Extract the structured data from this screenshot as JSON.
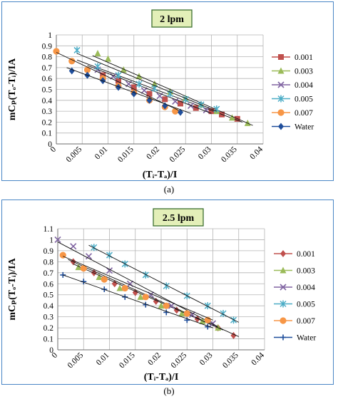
{
  "chart_data": [
    {
      "type": "scatter",
      "title": "2 lpm",
      "xlabel": "(Tᵢ-Tₐ)/I",
      "ylabel": "mCₚ(Tₒ-Tᵢ)/IA",
      "xlim": [
        0,
        0.04
      ],
      "ylim": [
        0,
        1
      ],
      "x_ticks": [
        "0",
        "0.005",
        "0.01",
        "0.015",
        "0.02",
        "0.025",
        "0.03",
        "0.035",
        "0.04"
      ],
      "y_ticks": [
        "0",
        "0.1",
        "0.2",
        "0.3",
        "0.4",
        "0.5",
        "0.6",
        "0.7",
        "0.8",
        "0.9",
        "1"
      ],
      "grid": true,
      "legend_position": "right",
      "series": [
        {
          "name": "0.001",
          "color": "#c0504d",
          "marker": "square",
          "x": [
            0.009,
            0.012,
            0.015,
            0.018,
            0.021,
            0.024,
            0.027,
            0.03,
            0.032,
            0.035
          ],
          "y": [
            0.63,
            0.58,
            0.52,
            0.46,
            0.41,
            0.37,
            0.33,
            0.3,
            0.27,
            0.23
          ],
          "fit": [
            [
              0.004,
              0.77
            ],
            [
              0.036,
              0.2
            ]
          ]
        },
        {
          "name": "0.003",
          "color": "#9bbb59",
          "marker": "triangle",
          "x": [
            0.008,
            0.01,
            0.013,
            0.016,
            0.019,
            0.022,
            0.025,
            0.028,
            0.031,
            0.034,
            0.037
          ],
          "y": [
            0.83,
            0.78,
            0.68,
            0.62,
            0.55,
            0.48,
            0.42,
            0.36,
            0.3,
            0.24,
            0.19
          ],
          "fit": [
            [
              0.007,
              0.81
            ],
            [
              0.038,
              0.17
            ]
          ]
        },
        {
          "name": "0.004",
          "color": "#8064a2",
          "marker": "x",
          "x": [
            0.008,
            0.011,
            0.014,
            0.017,
            0.02,
            0.023,
            0.026,
            0.029
          ],
          "y": [
            0.68,
            0.62,
            0.55,
            0.49,
            0.44,
            0.39,
            0.35,
            0.31
          ],
          "fit": [
            [
              0.006,
              0.72
            ],
            [
              0.03,
              0.28
            ]
          ]
        },
        {
          "name": "0.005",
          "color": "#4bacc6",
          "marker": "star",
          "x": [
            0.004,
            0.008,
            0.012,
            0.016,
            0.019,
            0.022,
            0.025,
            0.028,
            0.031
          ],
          "y": [
            0.86,
            0.71,
            0.63,
            0.55,
            0.51,
            0.46,
            0.41,
            0.36,
            0.32
          ],
          "fit": [
            [
              0.004,
              0.83
            ],
            [
              0.031,
              0.3
            ]
          ]
        },
        {
          "name": "0.007",
          "color": "#f79646",
          "marker": "circle",
          "x": [
            0.0,
            0.003,
            0.006,
            0.009,
            0.012,
            0.015,
            0.018,
            0.021,
            0.023
          ],
          "y": [
            0.85,
            0.76,
            0.68,
            0.6,
            0.53,
            0.47,
            0.4,
            0.34,
            0.3
          ],
          "fit": [
            [
              0.0,
              0.84
            ],
            [
              0.024,
              0.3
            ]
          ]
        },
        {
          "name": "Water",
          "color": "#1f4e9b",
          "marker": "diamond",
          "x": [
            0.003,
            0.006,
            0.009,
            0.012,
            0.015,
            0.018,
            0.021,
            0.024
          ],
          "y": [
            0.67,
            0.63,
            0.58,
            0.52,
            0.46,
            0.4,
            0.35,
            0.29
          ],
          "fit": [
            [
              0.002,
              0.7
            ],
            [
              0.026,
              0.28
            ]
          ]
        }
      ]
    },
    {
      "type": "scatter",
      "title": "2.5 lpm",
      "xlabel": "(Tᵢ-Tₐ)/I",
      "ylabel": "mCₚ(Tₒ-Tᵢ)/IA",
      "xlim": [
        0,
        0.04
      ],
      "ylim": [
        0,
        1.1
      ],
      "x_ticks": [
        "0",
        "0.005",
        "0.01",
        "0.015",
        "0.02",
        "0.025",
        "0.03",
        "0.035",
        "0.04"
      ],
      "y_ticks": [
        "0",
        "0.1",
        "0.2",
        "0.3",
        "0.4",
        "0.5",
        "0.6",
        "0.7",
        "0.8",
        "0.9",
        "1",
        "1.1"
      ],
      "grid": true,
      "legend_position": "right",
      "series": [
        {
          "name": "0.001",
          "color": "#c0504d",
          "marker": "diamond",
          "x": [
            0.003,
            0.007,
            0.011,
            0.015,
            0.019,
            0.023,
            0.027,
            0.031,
            0.034
          ],
          "y": [
            0.8,
            0.7,
            0.6,
            0.52,
            0.44,
            0.36,
            0.28,
            0.2,
            0.13
          ],
          "fit": [
            [
              0.002,
              0.82
            ],
            [
              0.035,
              0.12
            ]
          ]
        },
        {
          "name": "0.003",
          "color": "#9bbb59",
          "marker": "triangle",
          "x": [
            0.004,
            0.008,
            0.012,
            0.016,
            0.02,
            0.024,
            0.028,
            0.031
          ],
          "y": [
            0.75,
            0.66,
            0.56,
            0.48,
            0.4,
            0.33,
            0.26,
            0.2
          ],
          "fit": [
            [
              0.003,
              0.78
            ],
            [
              0.032,
              0.18
            ]
          ]
        },
        {
          "name": "0.004",
          "color": "#8064a2",
          "marker": "x",
          "x": [
            0.0,
            0.003,
            0.006,
            0.01,
            0.014,
            0.018,
            0.022,
            0.026,
            0.03
          ],
          "y": [
            1.0,
            0.94,
            0.85,
            0.72,
            0.6,
            0.5,
            0.4,
            0.32,
            0.24
          ],
          "fit": [
            [
              0.0,
              0.98
            ],
            [
              0.031,
              0.21
            ]
          ]
        },
        {
          "name": "0.005",
          "color": "#4bacc6",
          "marker": "star",
          "x": [
            0.007,
            0.01,
            0.013,
            0.017,
            0.021,
            0.025,
            0.029,
            0.032,
            0.034
          ],
          "y": [
            0.93,
            0.86,
            0.78,
            0.68,
            0.58,
            0.49,
            0.4,
            0.33,
            0.27
          ],
          "fit": [
            [
              0.006,
              0.95
            ],
            [
              0.035,
              0.25
            ]
          ]
        },
        {
          "name": "0.007",
          "color": "#f79646",
          "marker": "circle",
          "x": [
            0.001,
            0.005,
            0.009,
            0.013,
            0.017,
            0.021,
            0.025,
            0.029
          ],
          "y": [
            0.86,
            0.74,
            0.64,
            0.56,
            0.48,
            0.4,
            0.33,
            0.27
          ],
          "fit": [
            [
              0.001,
              0.85
            ],
            [
              0.03,
              0.27
            ]
          ]
        },
        {
          "name": "Water",
          "color": "#1f4e9b",
          "marker": "plus",
          "x": [
            0.001,
            0.005,
            0.009,
            0.013,
            0.017,
            0.021,
            0.025,
            0.029
          ],
          "y": [
            0.68,
            0.62,
            0.55,
            0.48,
            0.41,
            0.34,
            0.27,
            0.21
          ],
          "fit": [
            [
              0.001,
              0.68
            ],
            [
              0.03,
              0.2
            ]
          ]
        }
      ]
    }
  ],
  "captions": [
    "(a)",
    "(b)"
  ]
}
